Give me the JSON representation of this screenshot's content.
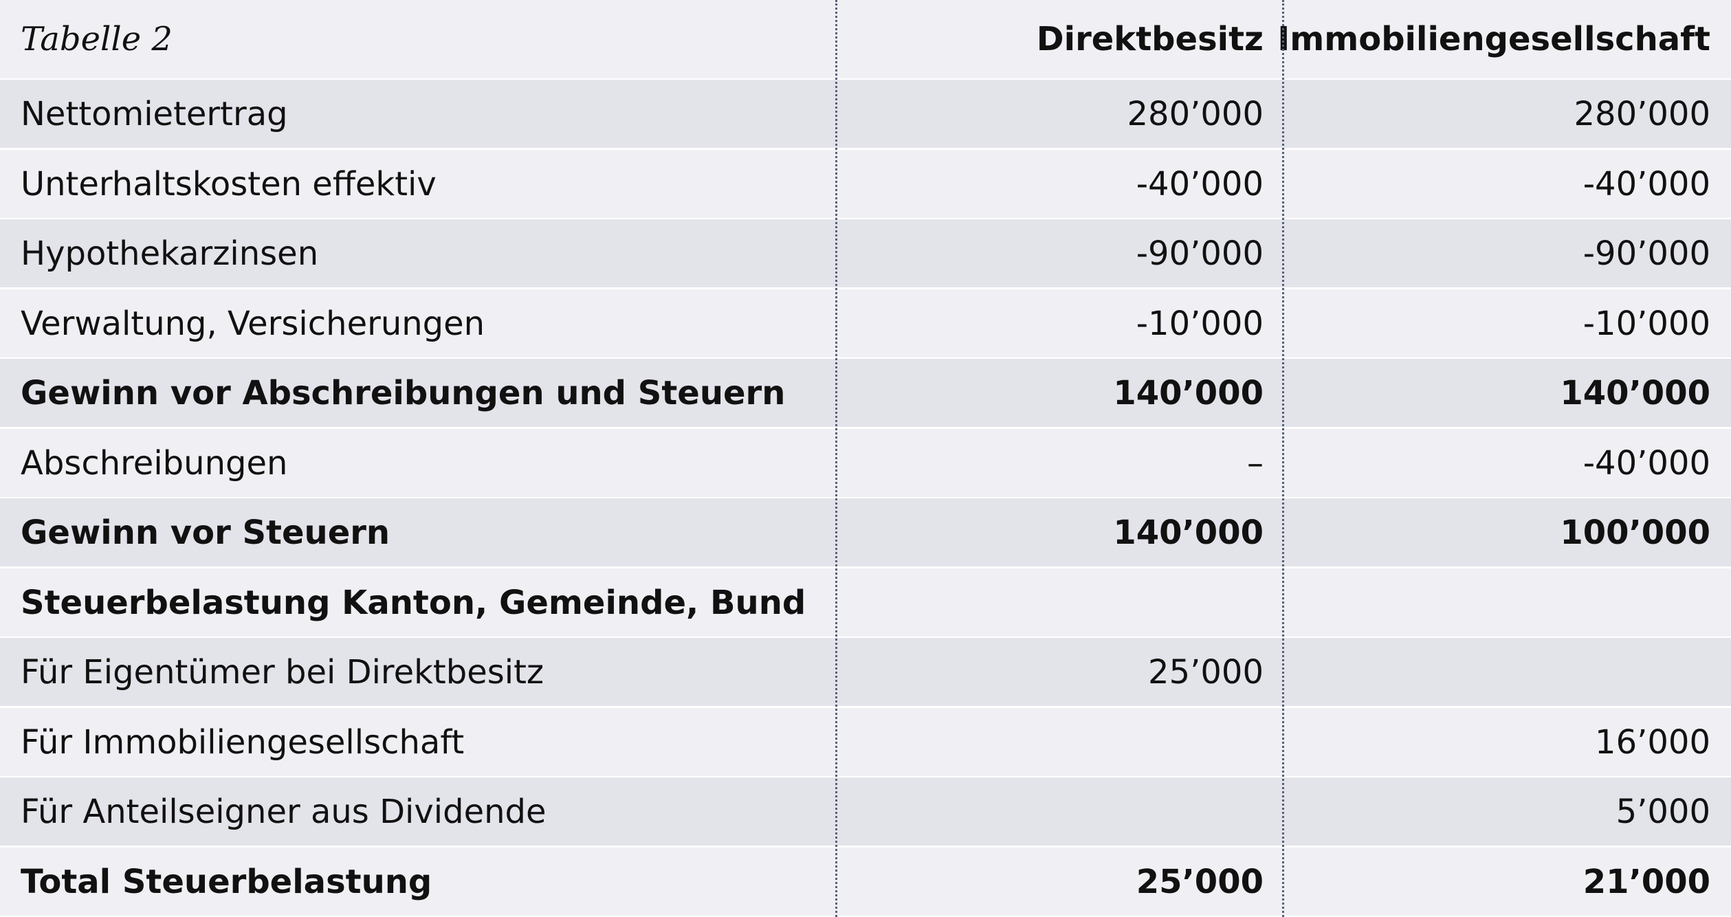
{
  "table": {
    "title": "Tabelle 2",
    "columns": [
      "Direktbesitz",
      "Immobiliengesellschaft"
    ],
    "rows": [
      {
        "label": "Nettomietertrag",
        "direkt": "280’000",
        "immo": "280’000",
        "bold": false,
        "shade": true
      },
      {
        "label": "Unterhaltskosten effektiv",
        "direkt": "-40’000",
        "immo": "-40’000",
        "bold": false,
        "shade": false
      },
      {
        "label": "Hypothekarzinsen",
        "direkt": "-90’000",
        "immo": "-90’000",
        "bold": false,
        "shade": true
      },
      {
        "label": "Verwaltung, Versicherungen",
        "direkt": "-10’000",
        "immo": "-10’000",
        "bold": false,
        "shade": false
      },
      {
        "label": "Gewinn vor Abschreibungen und Steuern",
        "direkt": "140’000",
        "immo": "140’000",
        "bold": true,
        "shade": true
      },
      {
        "label": "Abschreibungen",
        "direkt": "–",
        "immo": "-40’000",
        "bold": false,
        "shade": false
      },
      {
        "label": "Gewinn vor Steuern",
        "direkt": "140’000",
        "immo": "100’000",
        "bold": true,
        "shade": true
      },
      {
        "label": "Steuerbelastung Kanton, Gemeinde, Bund",
        "direkt": "",
        "immo": "",
        "bold": true,
        "shade": false
      },
      {
        "label": "Für Eigentümer bei Direktbesitz",
        "direkt": "25’000",
        "immo": "",
        "bold": false,
        "shade": true
      },
      {
        "label": "Für Immobiliengesellschaft",
        "direkt": "",
        "immo": "16’000",
        "bold": false,
        "shade": false
      },
      {
        "label": "Für Anteilseigner aus Dividende",
        "direkt": "",
        "immo": "5’000",
        "bold": false,
        "shade": true
      },
      {
        "label": "Total Steuerbelastung",
        "direkt": "25’000",
        "immo": "21’000",
        "bold": true,
        "shade": false
      }
    ]
  }
}
